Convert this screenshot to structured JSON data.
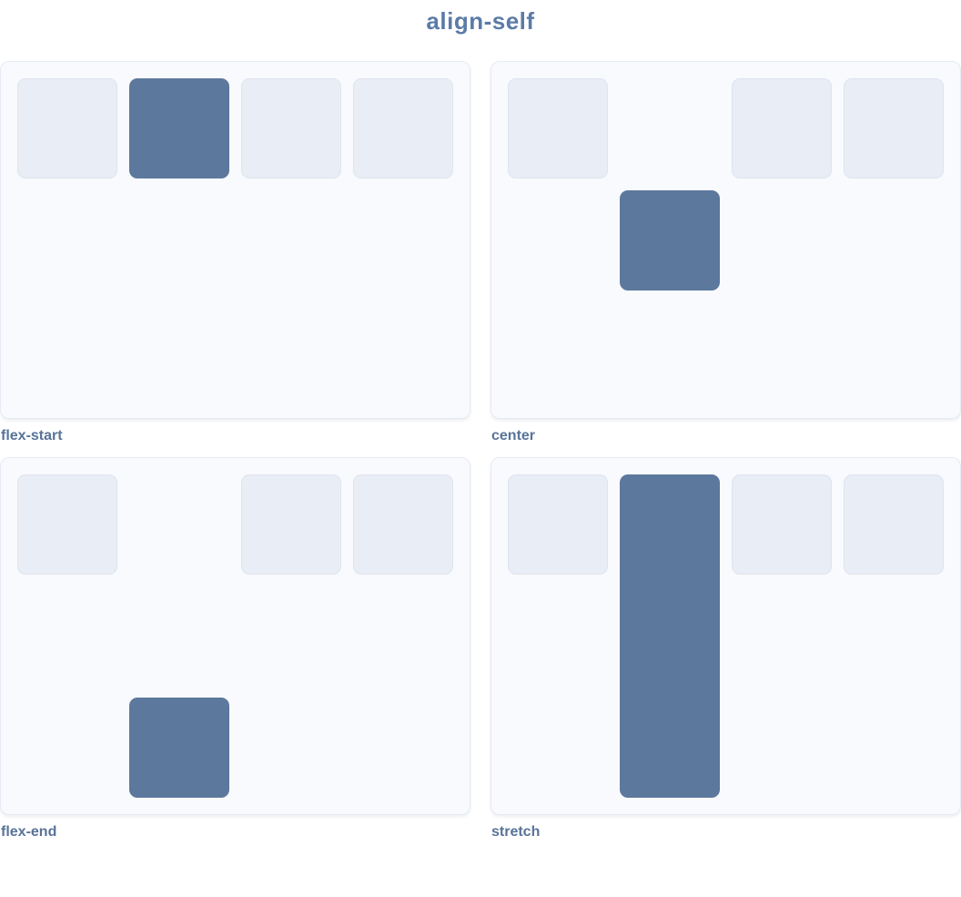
{
  "title": "align-self",
  "examples": [
    {
      "id": "flex-start",
      "label": "flex-start",
      "align_self": "flex-start"
    },
    {
      "id": "center",
      "label": "center",
      "align_self": "center"
    },
    {
      "id": "flex-end",
      "label": "flex-end",
      "align_self": "flex-end"
    },
    {
      "id": "stretch",
      "label": "stretch",
      "align_self": "stretch"
    }
  ],
  "colors": {
    "background": "#ffffff",
    "title_text": "#5b7ba8",
    "caption_text": "#587398",
    "panel_fill": "#f9fafd",
    "panel_border": "#e6ebf4",
    "item_fill": "#e9edf5",
    "item_border": "#dde4f0",
    "highlight_fill": "#5d789d"
  }
}
